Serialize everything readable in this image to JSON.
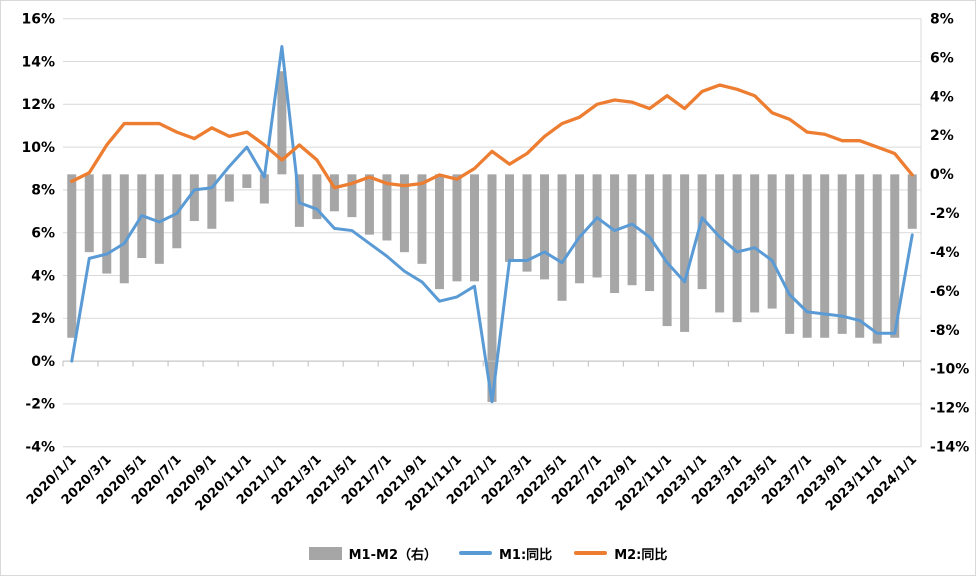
{
  "chart_data": {
    "type": "combo",
    "title": "",
    "x": [
      "2020/1/1",
      "2020/2/1",
      "2020/3/1",
      "2020/4/1",
      "2020/5/1",
      "2020/6/1",
      "2020/7/1",
      "2020/8/1",
      "2020/9/1",
      "2020/10/1",
      "2020/11/1",
      "2020/12/1",
      "2021/1/1",
      "2021/2/1",
      "2021/3/1",
      "2021/4/1",
      "2021/5/1",
      "2021/6/1",
      "2021/7/1",
      "2021/8/1",
      "2021/9/1",
      "2021/10/1",
      "2021/11/1",
      "2021/12/1",
      "2022/1/1",
      "2022/2/1",
      "2022/3/1",
      "2022/4/1",
      "2022/5/1",
      "2022/6/1",
      "2022/7/1",
      "2022/8/1",
      "2022/9/1",
      "2022/10/1",
      "2022/11/1",
      "2022/12/1",
      "2023/1/1",
      "2023/2/1",
      "2023/3/1",
      "2023/4/1",
      "2023/5/1",
      "2023/6/1",
      "2023/7/1",
      "2023/8/1",
      "2023/9/1",
      "2023/10/1",
      "2023/11/1",
      "2023/12/1",
      "2024/1/1"
    ],
    "x_label_every": 2,
    "left_axis": {
      "min": -4,
      "max": 16,
      "step": 2,
      "format": "percent",
      "labels": [
        "16%",
        "14%",
        "12%",
        "10%",
        "8%",
        "6%",
        "4%",
        "2%",
        "0%",
        "-2%",
        "-4%"
      ]
    },
    "right_axis": {
      "min": -14,
      "max": 8,
      "step": 2,
      "format": "percent",
      "labels": [
        "8%",
        "6%",
        "4%",
        "2%",
        "0%",
        "-2%",
        "-4%",
        "-6%",
        "-8%",
        "-10%",
        "-12%",
        "-14%"
      ]
    },
    "grid": true,
    "legend_position": "bottom",
    "series": [
      {
        "name": "M1-M2（右）",
        "type": "bar",
        "axis": "right",
        "color": "#A6A6A6",
        "values": [
          -8.4,
          -4.0,
          -5.1,
          -5.6,
          -4.3,
          -4.6,
          -3.8,
          -2.4,
          -2.8,
          -1.4,
          -0.7,
          -1.5,
          5.3,
          -2.7,
          -2.3,
          -1.9,
          -2.2,
          -3.1,
          -3.4,
          -4.0,
          -4.6,
          -5.9,
          -5.5,
          -5.5,
          -11.7,
          -4.5,
          -5.0,
          -5.4,
          -6.5,
          -5.6,
          -5.3,
          -6.1,
          -5.7,
          -6.0,
          -7.8,
          -8.1,
          -5.9,
          -7.1,
          -7.6,
          -7.1,
          -6.9,
          -8.2,
          -8.4,
          -8.4,
          -8.2,
          -8.4,
          -8.7,
          -8.4,
          -2.8
        ]
      },
      {
        "name": "M1:同比",
        "type": "line",
        "axis": "left",
        "color": "#5B9BD5",
        "values": [
          0.0,
          4.8,
          5.0,
          5.5,
          6.8,
          6.5,
          6.9,
          8.0,
          8.1,
          9.1,
          10.0,
          8.6,
          14.7,
          7.4,
          7.1,
          6.2,
          6.1,
          5.5,
          4.9,
          4.2,
          3.7,
          2.8,
          3.0,
          3.5,
          -1.9,
          4.7,
          4.7,
          5.1,
          4.6,
          5.8,
          6.7,
          6.1,
          6.4,
          5.8,
          4.6,
          3.7,
          6.7,
          5.8,
          5.1,
          5.3,
          4.7,
          3.1,
          2.3,
          2.2,
          2.1,
          1.9,
          1.3,
          1.3,
          5.9
        ]
      },
      {
        "name": "M2:同比",
        "type": "line",
        "axis": "left",
        "color": "#ED7D31",
        "values": [
          8.4,
          8.8,
          10.1,
          11.1,
          11.1,
          11.1,
          10.7,
          10.4,
          10.9,
          10.5,
          10.7,
          10.1,
          9.4,
          10.1,
          9.4,
          8.1,
          8.3,
          8.6,
          8.3,
          8.2,
          8.3,
          8.7,
          8.5,
          9.0,
          9.8,
          9.2,
          9.7,
          10.5,
          11.1,
          11.4,
          12.0,
          12.2,
          12.1,
          11.8,
          12.4,
          11.8,
          12.6,
          12.9,
          12.7,
          12.4,
          11.6,
          11.3,
          10.7,
          10.6,
          10.3,
          10.3,
          10.0,
          9.7,
          8.7
        ]
      }
    ]
  },
  "colors": {
    "grid": "#D9D9D9",
    "axis_line": "#BFBFBF",
    "plot_border": "#D9D9D9",
    "text": "#000000",
    "background": "#FFFFFF"
  }
}
